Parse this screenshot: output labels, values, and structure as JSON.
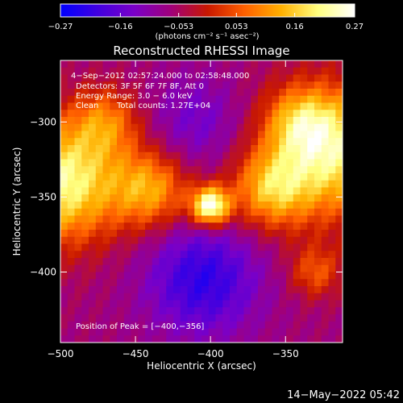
{
  "chart_data": {
    "type": "heatmap",
    "title": "Reconstructed RHESSI Image",
    "xlabel": "Heliocentric X (arcsec)",
    "ylabel": "Heliocentric Y (arcsec)",
    "xlim": [
      -500,
      -312
    ],
    "ylim": [
      -447,
      -259
    ],
    "x_ticks": [
      -500,
      -450,
      -400,
      -350
    ],
    "x_tick_labels": [
      "−500",
      "−450",
      "−400",
      "−350"
    ],
    "y_ticks": [
      -300,
      -350,
      -400
    ],
    "y_tick_labels": [
      "−300",
      "−350",
      "−400"
    ],
    "colorbar": {
      "range": [
        -0.27,
        0.27
      ],
      "ticks": [
        -0.27,
        -0.16,
        -0.053,
        0.053,
        0.16,
        0.27
      ],
      "tick_labels": [
        "−0.27",
        "−0.16",
        "−0.053",
        "0.053",
        "0.16",
        "0.27"
      ],
      "unit_label": "(photons cm⁻² s⁻¹ asec⁻²)",
      "colors": [
        "#0000ff",
        "#4000e0",
        "#7a00c8",
        "#a0007a",
        "#c81800",
        "#ff6000",
        "#ffb000",
        "#ffff80",
        "#ffffff"
      ]
    },
    "annotations": {
      "time_range": "4−Sep−2012 02:57:24.000 to 02:58:48.000",
      "detectors": "Detectors: 3F 5F 6F 7F 8F, Att 0",
      "energy": "Energy Range: 3.0 − 6.0 keV",
      "clean_label": "Clean",
      "total_counts": "Total counts: 1.27E+04",
      "peak": "Position of Peak = [−400,−356]"
    },
    "peak_position": [
      -400,
      -356
    ],
    "grid": false
  },
  "footer": {
    "date_stamp": "14−May−2022 05:42"
  }
}
